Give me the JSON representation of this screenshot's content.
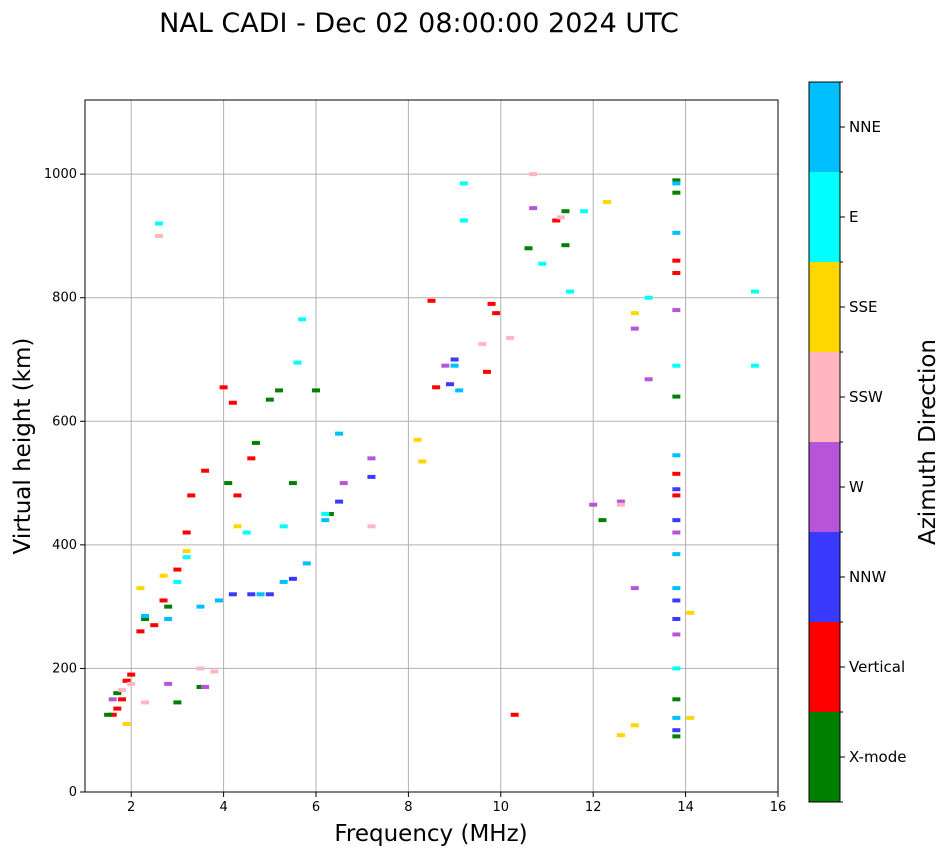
{
  "chart_data": {
    "type": "scatter",
    "title": "NAL CADI - Dec 02 08:00:00 2024 UTC",
    "xlabel": "Frequency (MHz)",
    "ylabel": "Virtual height (km)",
    "xlim": [
      1,
      16
    ],
    "ylim": [
      0,
      1120
    ],
    "xticks": [
      2,
      4,
      6,
      8,
      10,
      12,
      14,
      16
    ],
    "yticks": [
      0,
      200,
      400,
      600,
      800,
      1000
    ],
    "grid": true,
    "colorbar": {
      "label": "Azimuth Direction",
      "position": "right",
      "categories": [
        {
          "name": "X-mode",
          "color": "#008000"
        },
        {
          "name": "Vertical",
          "color": "#ff0000"
        },
        {
          "name": "NNW",
          "color": "#3a3aff"
        },
        {
          "name": "W",
          "color": "#b655d8"
        },
        {
          "name": "SSW",
          "color": "#ffb6c1"
        },
        {
          "name": "SSE",
          "color": "#ffd700"
        },
        {
          "name": "E",
          "color": "#00ffff"
        },
        {
          "name": "NNE",
          "color": "#00bfff"
        }
      ]
    },
    "series": [
      {
        "name": "Vertical",
        "points": [
          [
            1.6,
            125
          ],
          [
            1.7,
            135
          ],
          [
            1.8,
            150
          ],
          [
            1.9,
            180
          ],
          [
            2.0,
            190
          ],
          [
            2.2,
            260
          ],
          [
            2.5,
            270
          ],
          [
            2.7,
            310
          ],
          [
            3.0,
            360
          ],
          [
            3.2,
            420
          ],
          [
            3.3,
            480
          ],
          [
            3.6,
            520
          ],
          [
            4.0,
            655
          ],
          [
            4.2,
            630
          ],
          [
            4.3,
            480
          ],
          [
            4.6,
            540
          ],
          [
            8.5,
            795
          ],
          [
            8.6,
            655
          ],
          [
            9.7,
            680
          ],
          [
            9.8,
            790
          ],
          [
            9.9,
            775
          ],
          [
            10.3,
            125
          ],
          [
            11.2,
            925
          ],
          [
            13.8,
            860
          ],
          [
            13.8,
            840
          ],
          [
            13.8,
            515
          ],
          [
            13.8,
            480
          ]
        ]
      },
      {
        "name": "X-mode",
        "points": [
          [
            1.5,
            125
          ],
          [
            1.7,
            160
          ],
          [
            2.3,
            280
          ],
          [
            2.8,
            300
          ],
          [
            3.0,
            145
          ],
          [
            3.5,
            170
          ],
          [
            4.1,
            500
          ],
          [
            4.7,
            565
          ],
          [
            5.0,
            635
          ],
          [
            5.2,
            650
          ],
          [
            5.5,
            500
          ],
          [
            6.0,
            650
          ],
          [
            6.3,
            450
          ],
          [
            10.6,
            880
          ],
          [
            11.4,
            885
          ],
          [
            11.4,
            940
          ],
          [
            12.2,
            440
          ],
          [
            13.8,
            990
          ],
          [
            13.8,
            970
          ],
          [
            13.8,
            640
          ],
          [
            13.8,
            150
          ],
          [
            13.8,
            90
          ]
        ]
      },
      {
        "name": "NNW",
        "points": [
          [
            4.2,
            320
          ],
          [
            4.6,
            320
          ],
          [
            5.0,
            320
          ],
          [
            5.5,
            345
          ],
          [
            6.5,
            470
          ],
          [
            7.2,
            510
          ],
          [
            8.9,
            660
          ],
          [
            9.0,
            700
          ],
          [
            13.8,
            490
          ],
          [
            13.8,
            440
          ],
          [
            13.8,
            310
          ],
          [
            13.8,
            280
          ],
          [
            13.8,
            100
          ]
        ]
      },
      {
        "name": "W",
        "points": [
          [
            1.6,
            150
          ],
          [
            2.8,
            175
          ],
          [
            3.6,
            170
          ],
          [
            3.9,
            310
          ],
          [
            6.6,
            500
          ],
          [
            7.2,
            540
          ],
          [
            8.8,
            690
          ],
          [
            10.7,
            945
          ],
          [
            12.0,
            465
          ],
          [
            12.6,
            470
          ],
          [
            12.9,
            750
          ],
          [
            12.9,
            330
          ],
          [
            13.2,
            668
          ],
          [
            13.8,
            780
          ],
          [
            13.8,
            420
          ],
          [
            13.8,
            255
          ]
        ]
      },
      {
        "name": "SSW",
        "points": [
          [
            1.8,
            165
          ],
          [
            2.0,
            175
          ],
          [
            2.3,
            145
          ],
          [
            2.6,
            900
          ],
          [
            3.5,
            200
          ],
          [
            3.8,
            195
          ],
          [
            7.2,
            430
          ],
          [
            9.6,
            725
          ],
          [
            10.2,
            735
          ],
          [
            10.7,
            1000
          ],
          [
            11.3,
            930
          ],
          [
            12.6,
            465
          ]
        ]
      },
      {
        "name": "SSE",
        "points": [
          [
            1.9,
            110
          ],
          [
            2.2,
            330
          ],
          [
            2.7,
            350
          ],
          [
            3.2,
            390
          ],
          [
            4.3,
            430
          ],
          [
            8.2,
            570
          ],
          [
            8.3,
            535
          ],
          [
            12.3,
            955
          ],
          [
            12.6,
            92
          ],
          [
            12.9,
            108
          ],
          [
            12.9,
            775
          ],
          [
            14.1,
            290
          ],
          [
            14.1,
            120
          ]
        ]
      },
      {
        "name": "E",
        "points": [
          [
            2.6,
            920
          ],
          [
            3.0,
            340
          ],
          [
            3.2,
            380
          ],
          [
            4.5,
            420
          ],
          [
            5.3,
            430
          ],
          [
            5.6,
            695
          ],
          [
            5.7,
            765
          ],
          [
            6.2,
            450
          ],
          [
            9.2,
            985
          ],
          [
            9.2,
            925
          ],
          [
            10.9,
            855
          ],
          [
            11.5,
            810
          ],
          [
            11.8,
            940
          ],
          [
            13.2,
            800
          ],
          [
            13.8,
            690
          ],
          [
            13.8,
            200
          ],
          [
            15.5,
            690
          ],
          [
            15.5,
            810
          ]
        ]
      },
      {
        "name": "NNE",
        "points": [
          [
            2.3,
            285
          ],
          [
            2.8,
            280
          ],
          [
            3.5,
            300
          ],
          [
            3.9,
            310
          ],
          [
            4.8,
            320
          ],
          [
            5.3,
            340
          ],
          [
            5.8,
            370
          ],
          [
            6.2,
            440
          ],
          [
            6.5,
            580
          ],
          [
            9.0,
            690
          ],
          [
            9.1,
            650
          ],
          [
            13.8,
            985
          ],
          [
            13.8,
            905
          ],
          [
            13.8,
            545
          ],
          [
            13.8,
            385
          ],
          [
            13.8,
            330
          ],
          [
            13.8,
            120
          ]
        ]
      }
    ]
  }
}
